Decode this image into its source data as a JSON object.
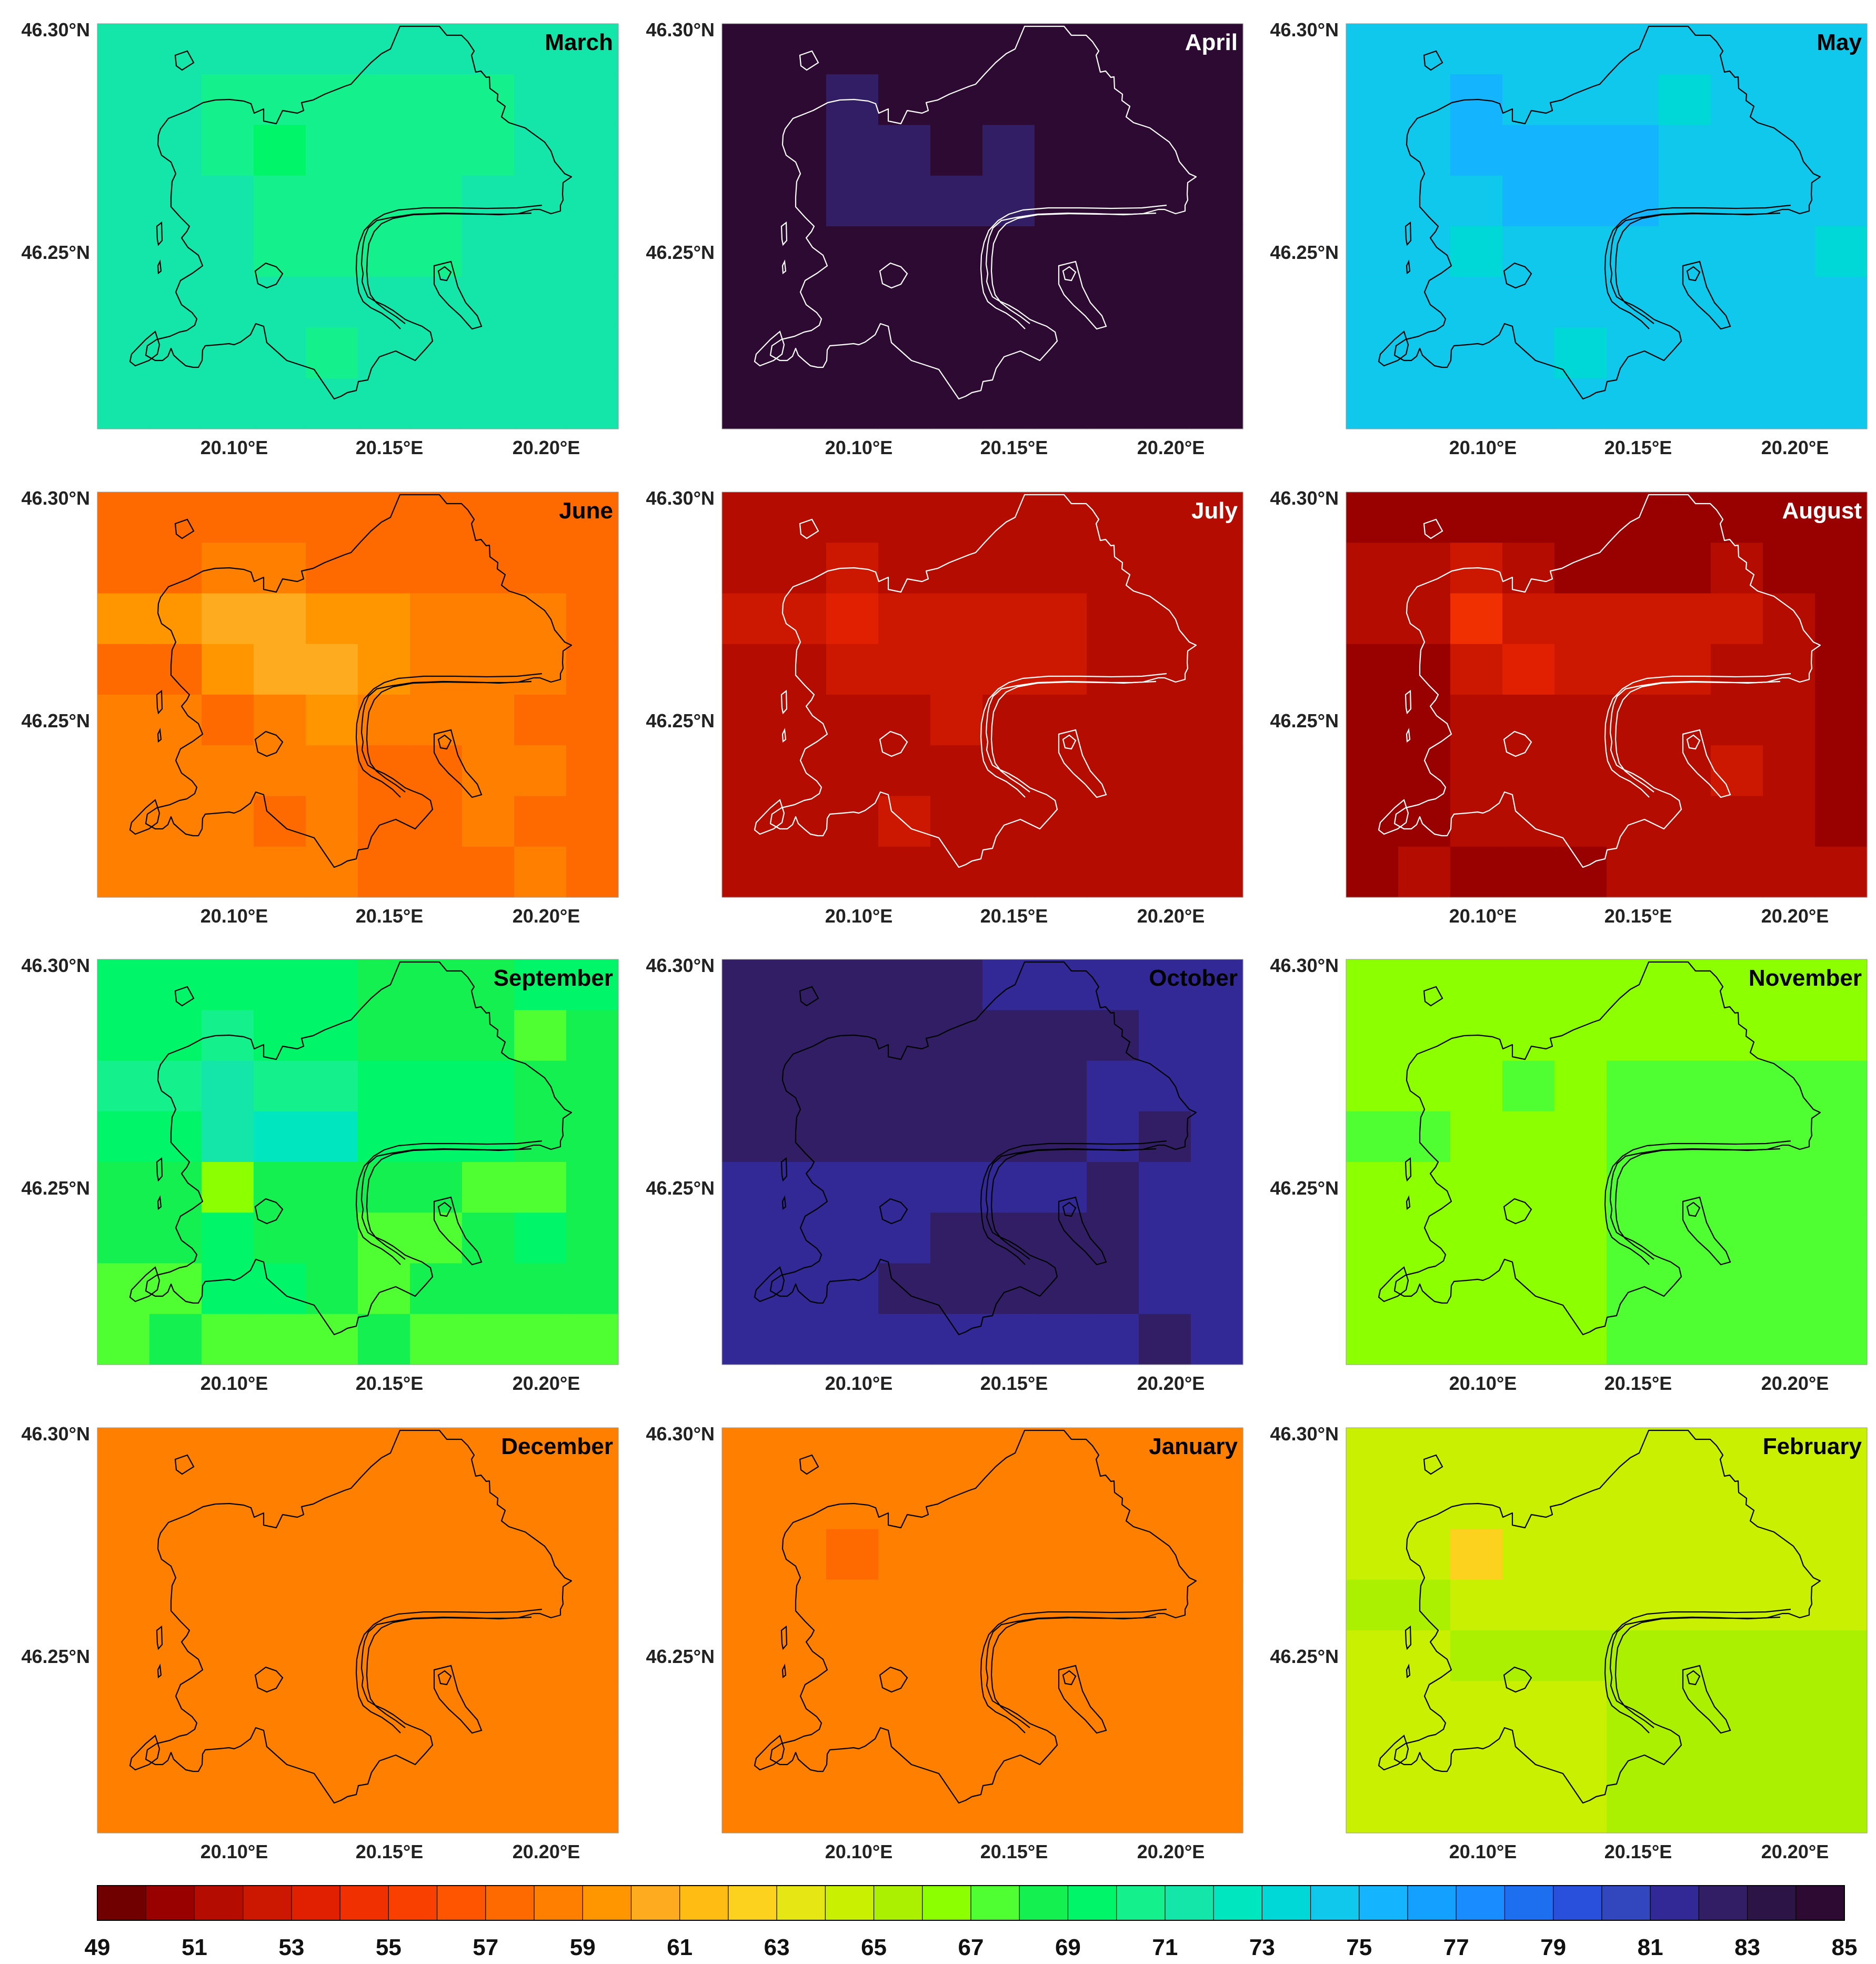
{
  "figure": {
    "lat_labels": [
      "46.30°N",
      "46.25°N"
    ],
    "lon_labels": [
      "20.10°E",
      "20.15°E",
      "20.20°E"
    ],
    "colorbar": {
      "tick_labels": [
        "49",
        "51",
        "53",
        "55",
        "57",
        "59",
        "61",
        "63",
        "65",
        "67",
        "69",
        "71",
        "73",
        "75",
        "77",
        "79",
        "81",
        "83",
        "85"
      ],
      "min": 49,
      "max": 85,
      "step": 2,
      "n_bins": 36,
      "colors": [
        "#700000",
        "#990000",
        "#b50c00",
        "#cc1800",
        "#e02000",
        "#f03000",
        "#fa4000",
        "#ff5500",
        "#ff6a00",
        "#ff8000",
        "#ff9600",
        "#ffab1f",
        "#ffbd14",
        "#fcd21e",
        "#e6e614",
        "#c8f000",
        "#aaf000",
        "#8cff00",
        "#50ff32",
        "#14f050",
        "#00f569",
        "#14f08c",
        "#14e6aa",
        "#00e6be",
        "#00d7d7",
        "#0fc8eb",
        "#14b4ff",
        "#14a0ff",
        "#198cff",
        "#1e6ef0",
        "#2850dc",
        "#3246be",
        "#322896",
        "#321e64",
        "#2d1446",
        "#2d0a32"
      ]
    }
  },
  "chart_data": [
    {
      "type": "heatmap",
      "title": "March",
      "grid_rows": 8,
      "grid_cols": 10,
      "values": [
        [
          71,
          71,
          71,
          71,
          71,
          71,
          71,
          71,
          71,
          71
        ],
        [
          71,
          71,
          70,
          70,
          70,
          70,
          70,
          70,
          71,
          71
        ],
        [
          71,
          71,
          70,
          69,
          70,
          70,
          70,
          70,
          71,
          71
        ],
        [
          71,
          71,
          71,
          70,
          70,
          70,
          70,
          71,
          71,
          71
        ],
        [
          71,
          71,
          71,
          70,
          70,
          70,
          70,
          71,
          71,
          71
        ],
        [
          71,
          71,
          71,
          71,
          71,
          71,
          71,
          71,
          71,
          71
        ],
        [
          71,
          71,
          71,
          71,
          70,
          71,
          71,
          71,
          71,
          71
        ],
        [
          71,
          71,
          71,
          71,
          71,
          71,
          71,
          71,
          71,
          71
        ]
      ]
    },
    {
      "type": "heatmap",
      "title": "April",
      "grid_rows": 8,
      "grid_cols": 10,
      "values": [
        [
          84,
          84,
          84,
          84,
          84,
          84,
          84,
          84,
          84,
          84
        ],
        [
          84,
          84,
          82,
          84,
          84,
          84,
          84,
          84,
          84,
          84
        ],
        [
          84,
          84,
          82,
          82,
          84,
          82,
          84,
          84,
          84,
          84
        ],
        [
          84,
          84,
          82,
          82,
          82,
          82,
          84,
          84,
          84,
          84
        ],
        [
          84,
          84,
          84,
          84,
          84,
          84,
          84,
          84,
          84,
          84
        ],
        [
          84,
          84,
          84,
          84,
          84,
          84,
          84,
          84,
          84,
          84
        ],
        [
          84,
          84,
          84,
          84,
          84,
          84,
          84,
          84,
          84,
          84
        ],
        [
          84,
          84,
          84,
          84,
          84,
          84,
          84,
          84,
          84,
          84
        ]
      ]
    },
    {
      "type": "heatmap",
      "title": "May",
      "grid_rows": 8,
      "grid_cols": 10,
      "values": [
        [
          74,
          74,
          74,
          74,
          74,
          74,
          74,
          74,
          74,
          74
        ],
        [
          74,
          74,
          75,
          74,
          74,
          74,
          73,
          74,
          74,
          74
        ],
        [
          74,
          74,
          75,
          75,
          75,
          75,
          74,
          74,
          74,
          74
        ],
        [
          74,
          74,
          74,
          75,
          75,
          75,
          74,
          74,
          74,
          74
        ],
        [
          74,
          74,
          73,
          74,
          74,
          74,
          74,
          74,
          74,
          73
        ],
        [
          74,
          74,
          74,
          74,
          74,
          74,
          74,
          74,
          74,
          74
        ],
        [
          74,
          74,
          74,
          74,
          73,
          74,
          74,
          74,
          74,
          74
        ],
        [
          74,
          74,
          74,
          74,
          74,
          74,
          74,
          74,
          74,
          74
        ]
      ]
    },
    {
      "type": "heatmap",
      "title": "June",
      "grid_rows": 8,
      "grid_cols": 10,
      "values": [
        [
          57,
          57,
          57,
          57,
          57,
          57,
          57,
          57,
          57,
          57
        ],
        [
          57,
          57,
          58,
          58,
          57,
          57,
          57,
          57,
          57,
          57
        ],
        [
          59,
          59,
          60,
          60,
          59,
          59,
          58,
          58,
          58,
          57
        ],
        [
          57,
          57,
          59,
          60,
          60,
          59,
          58,
          58,
          58,
          57
        ],
        [
          58,
          58,
          57,
          58,
          59,
          58,
          58,
          58,
          57,
          57
        ],
        [
          58,
          58,
          58,
          58,
          58,
          57,
          57,
          58,
          58,
          57
        ],
        [
          58,
          58,
          58,
          57,
          58,
          57,
          57,
          58,
          57,
          57
        ],
        [
          58,
          58,
          58,
          58,
          58,
          57,
          57,
          57,
          58,
          57
        ]
      ]
    },
    {
      "type": "heatmap",
      "title": "July",
      "grid_rows": 8,
      "grid_cols": 10,
      "values": [
        [
          51,
          51,
          51,
          51,
          51,
          51,
          51,
          51,
          51,
          51
        ],
        [
          51,
          51,
          52,
          51,
          51,
          51,
          51,
          51,
          51,
          51
        ],
        [
          52,
          52,
          53,
          52,
          52,
          52,
          52,
          51,
          51,
          51
        ],
        [
          51,
          51,
          52,
          52,
          52,
          52,
          52,
          51,
          51,
          51
        ],
        [
          51,
          51,
          51,
          51,
          52,
          51,
          51,
          51,
          51,
          51
        ],
        [
          51,
          51,
          51,
          51,
          51,
          51,
          51,
          51,
          51,
          51
        ],
        [
          51,
          51,
          51,
          52,
          51,
          51,
          51,
          51,
          51,
          51
        ],
        [
          51,
          51,
          51,
          51,
          51,
          51,
          51,
          51,
          51,
          51
        ]
      ]
    },
    {
      "type": "heatmap",
      "title": "August",
      "grid_rows": 8,
      "grid_cols": 10,
      "values": [
        [
          50,
          50,
          50,
          50,
          50,
          50,
          50,
          50,
          50,
          50
        ],
        [
          51,
          51,
          52,
          51,
          50,
          50,
          50,
          51,
          50,
          50
        ],
        [
          51,
          51,
          54,
          52,
          52,
          52,
          52,
          52,
          51,
          50
        ],
        [
          50,
          50,
          52,
          53,
          52,
          52,
          52,
          51,
          51,
          50
        ],
        [
          50,
          50,
          51,
          51,
          51,
          51,
          51,
          51,
          51,
          50
        ],
        [
          50,
          50,
          51,
          51,
          51,
          51,
          51,
          52,
          51,
          50
        ],
        [
          50,
          50,
          51,
          51,
          51,
          51,
          51,
          51,
          51,
          50
        ],
        [
          50,
          51,
          50,
          50,
          50,
          51,
          51,
          51,
          51,
          51
        ]
      ]
    },
    {
      "type": "heatmap",
      "title": "September",
      "grid_rows": 8,
      "grid_cols": 10,
      "values": [
        [
          69,
          69,
          69,
          69,
          69,
          68,
          68,
          68,
          69,
          69
        ],
        [
          69,
          69,
          70,
          69,
          69,
          68,
          68,
          68,
          67,
          68
        ],
        [
          70,
          70,
          71,
          70,
          70,
          69,
          69,
          69,
          68,
          68
        ],
        [
          69,
          69,
          71,
          72,
          72,
          69,
          69,
          69,
          68,
          68
        ],
        [
          68,
          68,
          66,
          68,
          68,
          68,
          68,
          67,
          67,
          68
        ],
        [
          68,
          68,
          69,
          68,
          68,
          67,
          67,
          68,
          69,
          68
        ],
        [
          67,
          67,
          69,
          69,
          68,
          67,
          68,
          68,
          68,
          68
        ],
        [
          67,
          68,
          67,
          67,
          67,
          68,
          67,
          67,
          67,
          67
        ]
      ]
    },
    {
      "type": "heatmap",
      "title": "October",
      "grid_rows": 8,
      "grid_cols": 10,
      "values": [
        [
          82,
          82,
          82,
          82,
          82,
          81,
          81,
          81,
          81,
          81
        ],
        [
          82,
          82,
          82,
          82,
          82,
          82,
          82,
          82,
          81,
          81
        ],
        [
          82,
          82,
          82,
          82,
          82,
          82,
          82,
          81,
          81,
          81
        ],
        [
          82,
          82,
          82,
          82,
          82,
          82,
          82,
          81,
          82,
          81
        ],
        [
          81,
          81,
          81,
          81,
          81,
          81,
          81,
          82,
          81,
          81
        ],
        [
          81,
          81,
          81,
          81,
          82,
          82,
          82,
          82,
          81,
          81
        ],
        [
          81,
          81,
          81,
          82,
          82,
          82,
          82,
          82,
          81,
          81
        ],
        [
          81,
          81,
          81,
          81,
          81,
          81,
          81,
          81,
          82,
          81
        ]
      ]
    },
    {
      "type": "heatmap",
      "title": "November",
      "grid_rows": 8,
      "grid_cols": 10,
      "values": [
        [
          66,
          66,
          66,
          66,
          66,
          66,
          66,
          66,
          66,
          66
        ],
        [
          66,
          66,
          66,
          66,
          66,
          66,
          66,
          66,
          66,
          66
        ],
        [
          66,
          66,
          66,
          67,
          66,
          67,
          67,
          67,
          67,
          67
        ],
        [
          67,
          67,
          66,
          66,
          66,
          67,
          67,
          67,
          67,
          67
        ],
        [
          66,
          66,
          66,
          66,
          66,
          67,
          67,
          67,
          67,
          67
        ],
        [
          66,
          66,
          66,
          66,
          66,
          67,
          67,
          67,
          67,
          67
        ],
        [
          66,
          66,
          66,
          66,
          66,
          67,
          67,
          67,
          67,
          67
        ],
        [
          66,
          66,
          66,
          66,
          66,
          67,
          67,
          67,
          67,
          67
        ]
      ]
    },
    {
      "type": "heatmap",
      "title": "December",
      "grid_rows": 8,
      "grid_cols": 10,
      "values": [
        [
          58,
          58,
          58,
          58,
          58,
          58,
          58,
          58,
          58,
          58
        ],
        [
          58,
          58,
          58,
          58,
          58,
          58,
          58,
          58,
          58,
          58
        ],
        [
          58,
          58,
          58,
          58,
          58,
          58,
          58,
          58,
          58,
          58
        ],
        [
          58,
          58,
          58,
          58,
          58,
          58,
          58,
          58,
          58,
          58
        ],
        [
          58,
          58,
          58,
          58,
          58,
          58,
          58,
          58,
          58,
          58
        ],
        [
          58,
          58,
          58,
          58,
          58,
          58,
          58,
          58,
          58,
          58
        ],
        [
          58,
          58,
          58,
          58,
          58,
          58,
          58,
          58,
          58,
          58
        ],
        [
          58,
          58,
          58,
          58,
          58,
          58,
          58,
          58,
          58,
          58
        ]
      ]
    },
    {
      "type": "heatmap",
      "title": "January",
      "grid_rows": 8,
      "grid_cols": 10,
      "values": [
        [
          58,
          58,
          58,
          58,
          58,
          58,
          58,
          58,
          58,
          58
        ],
        [
          58,
          58,
          58,
          58,
          58,
          58,
          58,
          58,
          58,
          58
        ],
        [
          58,
          58,
          57,
          58,
          58,
          58,
          58,
          58,
          58,
          58
        ],
        [
          58,
          58,
          58,
          58,
          58,
          58,
          58,
          58,
          58,
          58
        ],
        [
          58,
          58,
          58,
          58,
          58,
          58,
          58,
          58,
          58,
          58
        ],
        [
          58,
          58,
          58,
          58,
          58,
          58,
          58,
          58,
          58,
          58
        ],
        [
          58,
          58,
          58,
          58,
          58,
          58,
          58,
          58,
          58,
          58
        ],
        [
          58,
          58,
          58,
          58,
          58,
          58,
          58,
          58,
          58,
          58
        ]
      ]
    },
    {
      "type": "heatmap",
      "title": "February",
      "grid_rows": 8,
      "grid_cols": 10,
      "values": [
        [
          64,
          64,
          64,
          64,
          64,
          64,
          64,
          64,
          64,
          64
        ],
        [
          64,
          64,
          64,
          64,
          64,
          64,
          64,
          64,
          64,
          64
        ],
        [
          64,
          64,
          62,
          64,
          64,
          64,
          64,
          64,
          64,
          64
        ],
        [
          65,
          65,
          64,
          64,
          64,
          64,
          64,
          64,
          64,
          64
        ],
        [
          64,
          64,
          65,
          65,
          65,
          65,
          65,
          65,
          65,
          65
        ],
        [
          64,
          64,
          64,
          64,
          64,
          65,
          65,
          65,
          65,
          65
        ],
        [
          64,
          64,
          64,
          64,
          64,
          65,
          65,
          65,
          65,
          65
        ],
        [
          64,
          64,
          64,
          64,
          64,
          65,
          65,
          65,
          65,
          65
        ]
      ]
    }
  ]
}
